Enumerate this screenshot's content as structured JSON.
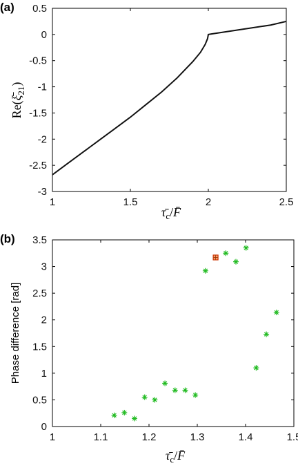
{
  "chart_data": [
    {
      "panel_label": "(a)",
      "type": "line",
      "xlabel": "τ̄c/F̄",
      "ylabel": "Re(ξ̄21)",
      "xlim": [
        1,
        2.5
      ],
      "ylim": [
        -3,
        0.5
      ],
      "xticks": [
        "1",
        "1.5",
        "2",
        "2.5"
      ],
      "yticks": [
        "0.5",
        "0",
        "-0.5",
        "-1",
        "-1.5",
        "-2",
        "-2.5",
        "-3"
      ],
      "series": [
        {
          "x": [
            1.0,
            1.1,
            1.2,
            1.3,
            1.4,
            1.5,
            1.6,
            1.7,
            1.8,
            1.9,
            1.95,
            1.98,
            1.995,
            2.0,
            2.02,
            2.2,
            2.4,
            2.5
          ],
          "y": [
            -2.68,
            -2.46,
            -2.24,
            -2.02,
            -1.8,
            -1.58,
            -1.34,
            -1.1,
            -0.83,
            -0.52,
            -0.34,
            -0.19,
            -0.08,
            0.0,
            0.01,
            0.09,
            0.18,
            0.25
          ]
        }
      ]
    },
    {
      "panel_label": "(b)",
      "type": "scatter",
      "xlabel": "τ̄c/F̄",
      "ylabel": "Phase difference [rad]",
      "xlim": [
        1,
        1.5
      ],
      "ylim": [
        0,
        3.5
      ],
      "xticks": [
        "1",
        "1.1",
        "1.2",
        "1.3",
        "1.4",
        "1.5"
      ],
      "yticks": [
        "3.5",
        "3",
        "2.5",
        "2",
        "1.5",
        "1",
        "0.5",
        "0"
      ],
      "series": [
        {
          "marker": "asterisk",
          "color": "#22bb22",
          "x": [
            1.128,
            1.149,
            1.17,
            1.191,
            1.212,
            1.233,
            1.254,
            1.275,
            1.296,
            1.317,
            1.359,
            1.38,
            1.401,
            1.422,
            1.443,
            1.464
          ],
          "y": [
            0.21,
            0.26,
            0.15,
            0.55,
            0.5,
            0.81,
            0.68,
            0.68,
            0.59,
            2.92,
            3.25,
            3.09,
            3.35,
            1.1,
            1.73,
            2.14
          ]
        },
        {
          "marker": "square",
          "color": "#cc3300",
          "x": [
            1.338
          ],
          "y": [
            3.17
          ]
        }
      ]
    }
  ]
}
